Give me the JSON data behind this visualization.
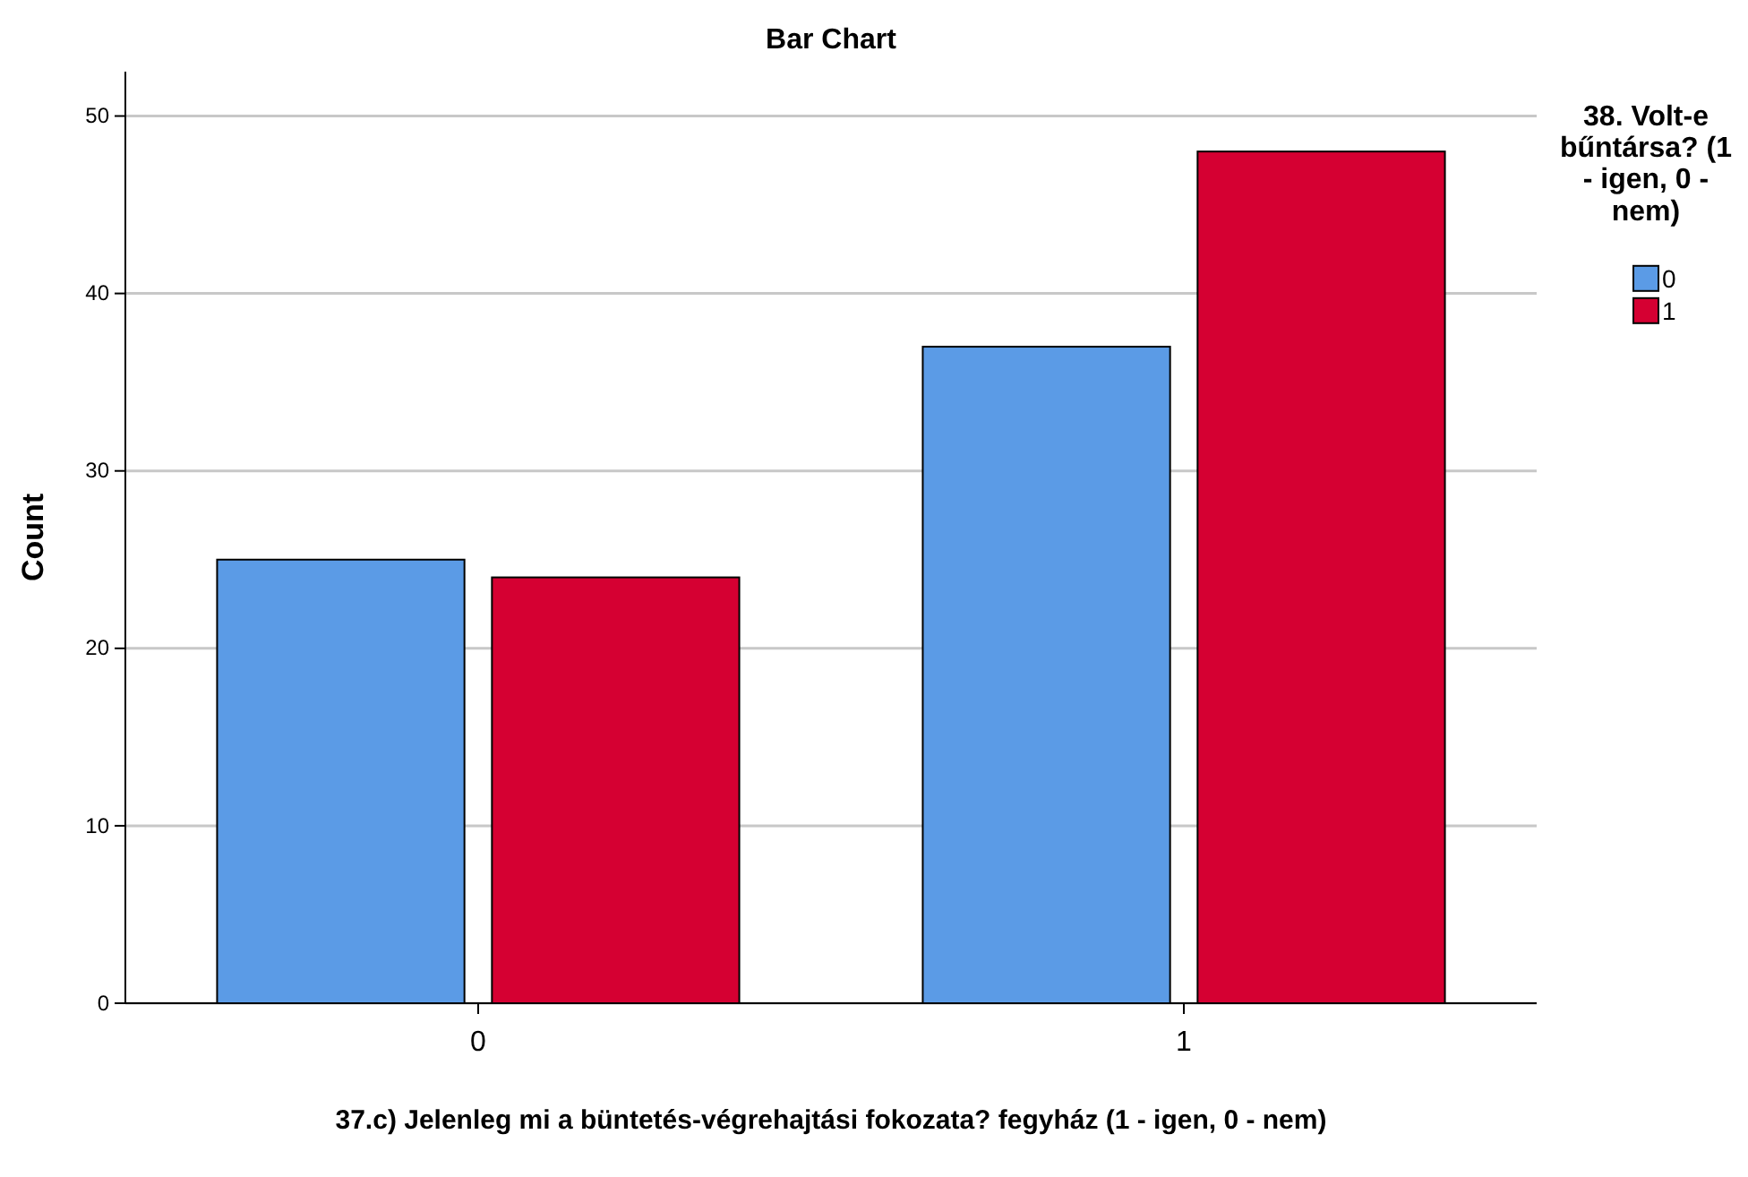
{
  "chart_data": {
    "type": "bar",
    "title": "Bar Chart",
    "xlabel": "37.c) Jelenleg mi a büntetés-végrehajtási fokozata? fegyház (1 - igen, 0 - nem)",
    "ylabel": "Count",
    "legend_title": "38. Volt-e bűntársa? (1 - igen, 0 - nem)",
    "categories": [
      "0",
      "1"
    ],
    "series": [
      {
        "name": "0",
        "color": "#5b9be6",
        "values": [
          25,
          37
        ]
      },
      {
        "name": "1",
        "color": "#d50032",
        "values": [
          24,
          48
        ]
      }
    ],
    "ylim": [
      0,
      52.5
    ],
    "yticks": [
      0,
      10,
      20,
      30,
      40,
      50
    ],
    "grid": "y",
    "legend": "right"
  }
}
